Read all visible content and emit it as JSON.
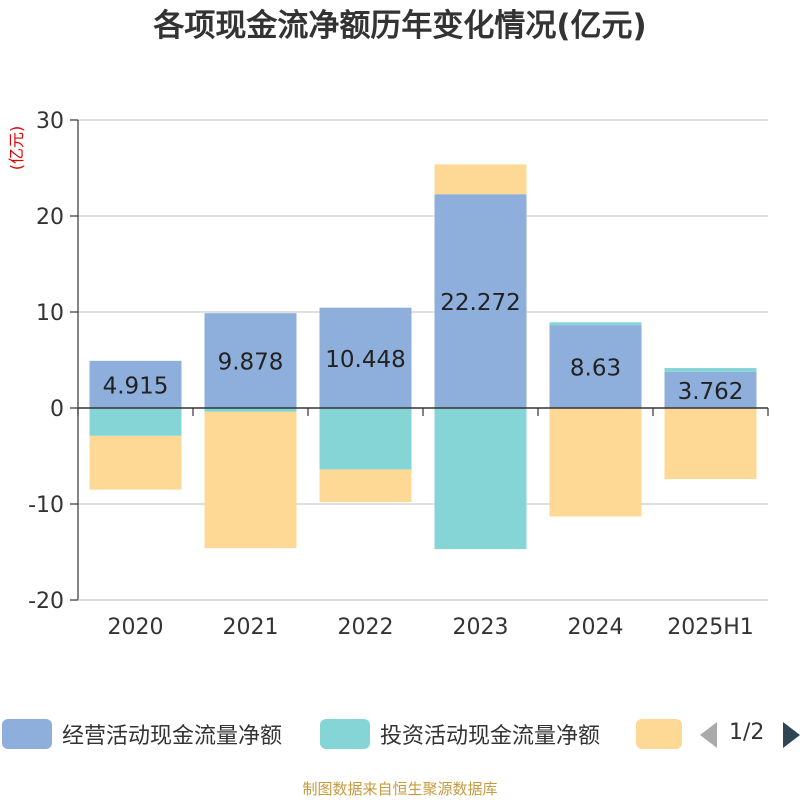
{
  "chart_data": {
    "type": "bar",
    "stacked": true,
    "title": "各项现金流净额历年变化情况(亿元)",
    "ylabel": "(亿元)",
    "ylim": [
      -20,
      30
    ],
    "yticks": [
      -20,
      -10,
      0,
      10,
      20,
      30
    ],
    "grid": true,
    "categories": [
      "2020",
      "2021",
      "2022",
      "2023",
      "2024",
      "2025H1"
    ],
    "series": [
      {
        "name": "经营活动现金流量净额",
        "color": "#8eaedb",
        "values": [
          4.915,
          9.878,
          10.448,
          22.272,
          8.63,
          3.762
        ],
        "labels": [
          "4.915",
          "9.878",
          "10.448",
          "22.272",
          "8.63",
          "3.762"
        ]
      },
      {
        "name": "投资活动现金流量净额",
        "color": "#86d5d6",
        "values": [
          -2.9,
          -0.4,
          -6.4,
          -14.7,
          0.3,
          0.4
        ]
      },
      {
        "name": "",
        "color": "#fed995",
        "values": [
          -5.6,
          -14.2,
          -3.4,
          3.1,
          -11.3,
          -7.4
        ]
      }
    ],
    "legend_position": "bottom"
  },
  "legend": {
    "page_indicator": "1/2",
    "prev_icon": "triangle-left-icon",
    "next_icon": "triangle-right-icon"
  },
  "footer": {
    "source": "制图数据来自恒生聚源数据库"
  }
}
